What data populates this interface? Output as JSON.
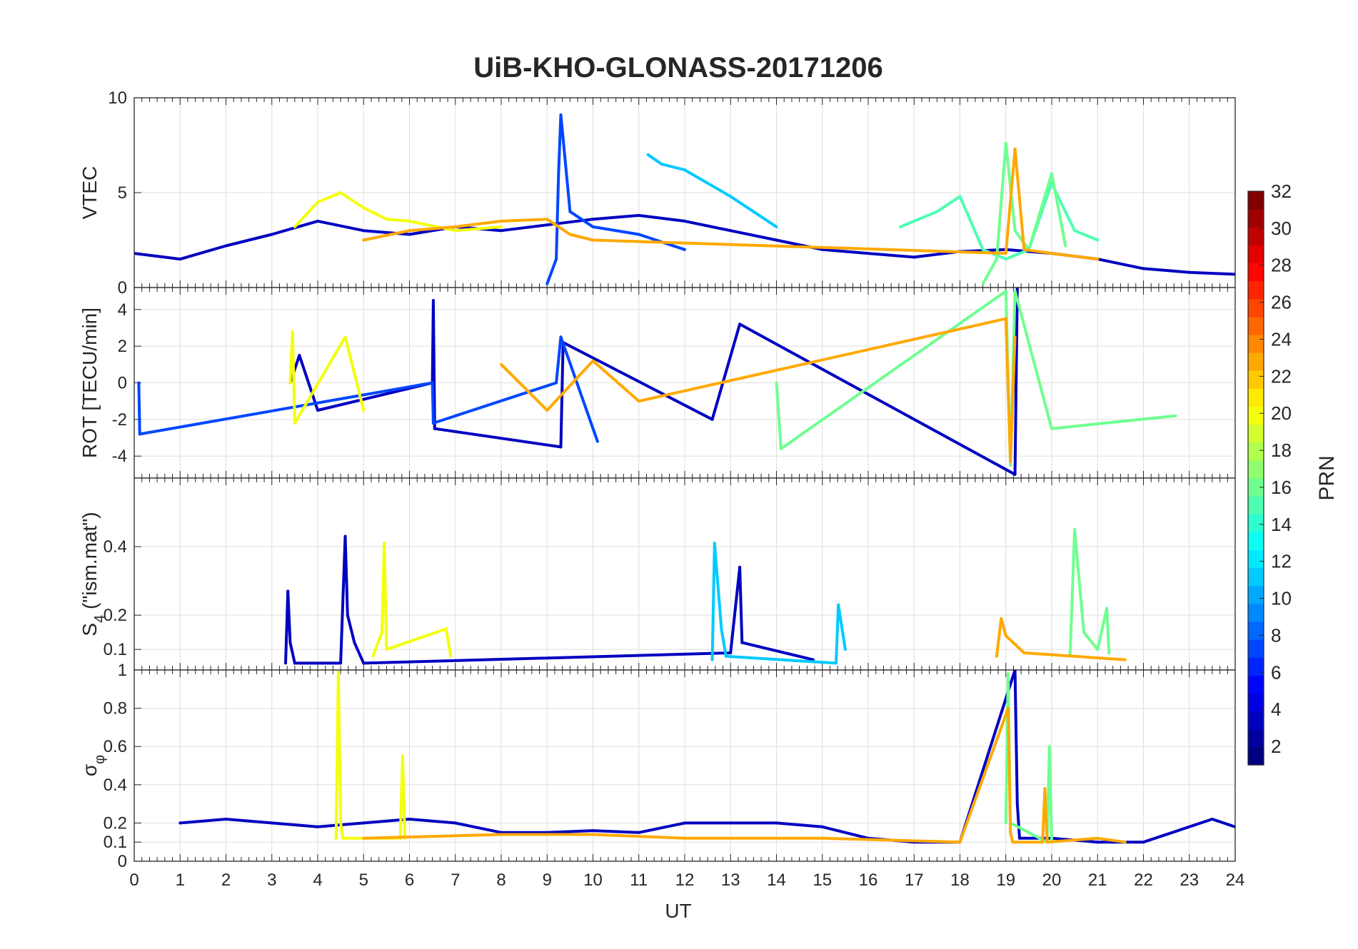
{
  "chart_data": {
    "type": "line",
    "title": "UiB-KHO-GLONASS-20171206",
    "xlabel": "UT",
    "xlim": [
      0,
      24
    ],
    "x_ticks": [
      "0",
      "1",
      "2",
      "3",
      "4",
      "5",
      "6",
      "7",
      "8",
      "9",
      "10",
      "11",
      "12",
      "13",
      "14",
      "15",
      "16",
      "17",
      "18",
      "19",
      "20",
      "21",
      "22",
      "23",
      "24"
    ],
    "grid": true,
    "colorbar": {
      "label": "PRN",
      "range": [
        1,
        32
      ],
      "ticks": [
        "2",
        "4",
        "6",
        "8",
        "10",
        "12",
        "14",
        "16",
        "18",
        "20",
        "22",
        "24",
        "26",
        "28",
        "30",
        "32"
      ],
      "colormap": "jet",
      "levels": 32
    },
    "panels": [
      {
        "name": "vtec",
        "ylabel": "VTEC",
        "ylim": [
          0,
          10
        ],
        "y_ticks": [
          "0",
          "5",
          "10"
        ],
        "series": [
          {
            "prn": 3,
            "t": [
              0,
              1,
              2,
              3,
              4,
              5,
              6,
              7,
              8,
              9,
              10,
              11,
              12,
              13,
              14,
              15,
              16,
              17,
              18,
              19,
              20,
              21,
              22,
              23,
              24
            ],
            "v": [
              1.8,
              1.5,
              2.2,
              2.8,
              3.5,
              3.0,
              2.8,
              3.2,
              3.0,
              3.3,
              3.6,
              3.8,
              3.5,
              3.0,
              2.5,
              2.0,
              1.8,
              1.6,
              1.9,
              2.0,
              1.8,
              1.5,
              1.0,
              0.8,
              0.7
            ]
          },
          {
            "prn": 7,
            "t": [
              9.0,
              9.2,
              9.25,
              9.3,
              9.5,
              10,
              11,
              12
            ],
            "v": [
              0.2,
              1.5,
              6.0,
              9.1,
              4.0,
              3.2,
              2.8,
              2.0
            ]
          },
          {
            "prn": 11,
            "t": [
              11.2,
              11.5,
              12,
              12.5,
              13,
              13.5,
              14
            ],
            "v": [
              7.0,
              6.5,
              6.2,
              5.5,
              4.8,
              4.0,
              3.2
            ]
          },
          {
            "prn": 15,
            "t": [
              16.7,
              17,
              17.5,
              18,
              18.5,
              19,
              19.5,
              20,
              20.5,
              21
            ],
            "v": [
              3.2,
              3.5,
              4.0,
              4.8,
              2.0,
              1.5,
              2.0,
              5.5,
              3.0,
              2.5
            ]
          },
          {
            "prn": 16,
            "t": [
              18.5,
              18.8,
              19.0,
              19.2,
              19.5,
              20,
              20.3
            ],
            "v": [
              0.2,
              1.5,
              7.6,
              3.0,
              2.0,
              6.0,
              2.2
            ]
          },
          {
            "prn": 20,
            "t": [
              3.5,
              4,
              4.5,
              5,
              5.5,
              6,
              7,
              8
            ],
            "v": [
              3.2,
              4.5,
              5.0,
              4.2,
              3.6,
              3.5,
              3.0,
              3.2
            ]
          },
          {
            "prn": 23,
            "t": [
              5,
              6,
              7,
              8,
              9,
              9.5,
              10,
              19.0,
              19.2,
              19.4,
              20,
              21
            ],
            "v": [
              2.5,
              3.0,
              3.2,
              3.5,
              3.6,
              2.8,
              2.5,
              1.8,
              7.3,
              2.0,
              1.8,
              1.5
            ]
          }
        ]
      },
      {
        "name": "rot",
        "ylabel": "ROT [TECU/min]",
        "ylim": [
          -5.2,
          5.2
        ],
        "y_ticks": [
          "-4",
          "-2",
          "0",
          "2",
          "4"
        ],
        "series": [
          {
            "prn": 3,
            "t": [
              3.4,
              3.6,
              4,
              6.5,
              6.52,
              6.55,
              9.3,
              9.35,
              12.6,
              13.2,
              19.2,
              19.25
            ],
            "v": [
              0,
              1.5,
              -1.5,
              0,
              4.5,
              -2.5,
              -3.5,
              2.2,
              -2.0,
              3.2,
              -5.0,
              5.2
            ]
          },
          {
            "prn": 7,
            "t": [
              0.1,
              0.12,
              6.5,
              6.52,
              9.2,
              9.3,
              10.1
            ],
            "v": [
              0,
              -2.8,
              0,
              -2.2,
              0,
              2.5,
              -3.2
            ]
          },
          {
            "prn": 16,
            "t": [
              14.0,
              14.1,
              19.0,
              19.1,
              19.2,
              20.0,
              22.7
            ],
            "v": [
              0,
              -3.6,
              5.0,
              -4.5,
              5.0,
              -2.5,
              -1.8
            ]
          },
          {
            "prn": 20,
            "t": [
              3.4,
              3.45,
              3.5,
              4.6,
              5.0
            ],
            "v": [
              0,
              2.8,
              -2.2,
              2.5,
              -1.5
            ]
          },
          {
            "prn": 23,
            "t": [
              8,
              9,
              10,
              11,
              19.0,
              19.1,
              19.2
            ],
            "v": [
              1.0,
              -1.5,
              1.2,
              -1.0,
              3.5,
              -4.3,
              2.5
            ]
          }
        ]
      },
      {
        "name": "s4",
        "ylabel": "S",
        "ylabel_sub": "4",
        "ylabel_suffix": " (\"ism.mat\")",
        "ylim": [
          0.04,
          0.6
        ],
        "y_ticks": [
          "0.1",
          "0.2",
          "0.4"
        ],
        "series": [
          {
            "prn": 3,
            "t": [
              3.3,
              3.35,
              3.4,
              3.5,
              4.5,
              4.6,
              4.65,
              4.8,
              5.0,
              13.0,
              13.2,
              13.25,
              14.8
            ],
            "v": [
              0.06,
              0.27,
              0.12,
              0.06,
              0.06,
              0.43,
              0.2,
              0.12,
              0.06,
              0.09,
              0.34,
              0.12,
              0.07
            ]
          },
          {
            "prn": 11,
            "t": [
              12.6,
              12.65,
              12.8,
              12.9,
              15.3,
              15.35,
              15.5
            ],
            "v": [
              0.07,
              0.41,
              0.16,
              0.08,
              0.06,
              0.23,
              0.1
            ]
          },
          {
            "prn": 16,
            "t": [
              20.4,
              20.5,
              20.7,
              21.0,
              21.2,
              21.25
            ],
            "v": [
              0.08,
              0.45,
              0.15,
              0.1,
              0.22,
              0.09
            ]
          },
          {
            "prn": 20,
            "t": [
              5.2,
              5.4,
              5.45,
              5.5,
              6.8,
              6.9
            ],
            "v": [
              0.08,
              0.15,
              0.41,
              0.1,
              0.16,
              0.08
            ]
          },
          {
            "prn": 23,
            "t": [
              18.8,
              18.9,
              19.0,
              19.4,
              21.6
            ],
            "v": [
              0.08,
              0.19,
              0.14,
              0.09,
              0.07
            ]
          }
        ]
      },
      {
        "name": "sigma_phi",
        "ylabel": "σ",
        "ylabel_sub": "φ",
        "ylim": [
          0,
          1.0
        ],
        "y_ticks": [
          "0",
          "0.1",
          "0.2",
          "0.4",
          "0.6",
          "0.8",
          "1"
        ],
        "series": [
          {
            "prn": 3,
            "t": [
              1,
              2,
              3,
              4,
              5,
              6,
              7,
              8,
              9,
              10,
              11,
              12,
              13,
              14,
              15,
              16,
              17,
              18,
              19.2,
              19.25,
              19.3,
              20,
              21,
              22,
              23.5,
              24
            ],
            "v": [
              0.2,
              0.22,
              0.2,
              0.18,
              0.2,
              0.22,
              0.2,
              0.15,
              0.15,
              0.16,
              0.15,
              0.2,
              0.2,
              0.2,
              0.18,
              0.12,
              0.1,
              0.1,
              1.0,
              0.3,
              0.12,
              0.12,
              0.1,
              0.1,
              0.22,
              0.18
            ]
          },
          {
            "prn": 16,
            "t": [
              19.0,
              19.05,
              19.1,
              19.9,
              19.95,
              20.0
            ],
            "v": [
              0.2,
              0.98,
              0.2,
              0.1,
              0.6,
              0.1
            ]
          },
          {
            "prn": 20,
            "t": [
              4.4,
              4.45,
              4.5,
              4.55,
              5.8,
              5.85,
              5.9
            ],
            "v": [
              0.12,
              1.0,
              0.2,
              0.12,
              0.12,
              0.55,
              0.12
            ]
          },
          {
            "prn": 23,
            "t": [
              5,
              8,
              10,
              12,
              15,
              18,
              19.05,
              19.1,
              19.15,
              19.8,
              19.85,
              19.9,
              21,
              21.6
            ],
            "v": [
              0.12,
              0.14,
              0.14,
              0.12,
              0.12,
              0.1,
              0.8,
              0.15,
              0.1,
              0.1,
              0.38,
              0.1,
              0.12,
              0.1
            ]
          }
        ]
      }
    ]
  }
}
